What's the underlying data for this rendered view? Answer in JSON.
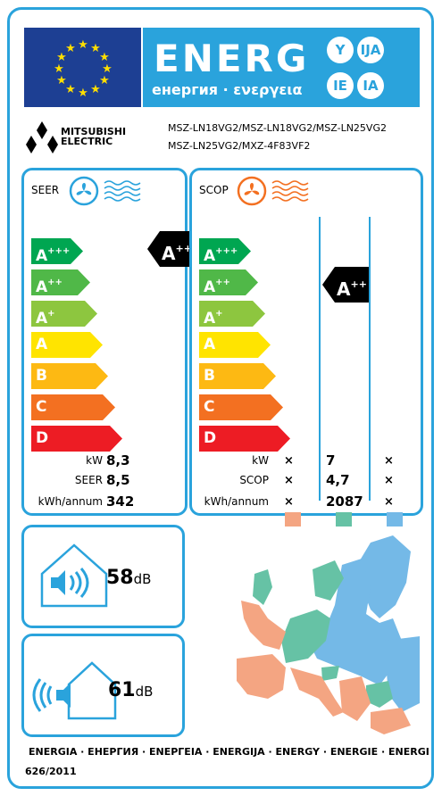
{
  "header": {
    "energ_text": "ENERG",
    "sub_text": "енергия · ενεργεια",
    "suffixes": [
      "Y",
      "IJA",
      "IE",
      "IA"
    ]
  },
  "brand": {
    "name_line1": "MITSUBISHI",
    "name_line2": "ELECTRIC"
  },
  "models": {
    "line1": "MSZ-LN18VG2/MSZ-LN18VG2/MSZ-LN25VG2",
    "line2": "MSZ-LN25VG2/MXZ-4F83VF2"
  },
  "seer": {
    "title": "SEER",
    "classes": [
      "A",
      "A",
      "A",
      "A",
      "B",
      "C",
      "D"
    ],
    "class_sups": [
      "+++",
      "++",
      "+",
      "",
      "",
      "",
      ""
    ],
    "rating": "A",
    "rating_sup": "+++",
    "rows": [
      {
        "label": "kW",
        "value": "8,3"
      },
      {
        "label": "SEER",
        "value": "8,5"
      },
      {
        "label": "kWh/annum",
        "value": "342"
      }
    ]
  },
  "scop": {
    "title": "SCOP",
    "classes": [
      "A",
      "A",
      "A",
      "A",
      "B",
      "C",
      "D"
    ],
    "class_sups": [
      "+++",
      "++",
      "+",
      "",
      "",
      "",
      ""
    ],
    "rating": "A",
    "rating_sup": "++",
    "rows": [
      {
        "label": "kW",
        "col1": "×",
        "col2": "7",
        "col3": "×"
      },
      {
        "label": "SCOP",
        "col1": "×",
        "col2": "4,7",
        "col3": "×"
      },
      {
        "label": "kWh/annum",
        "col1": "×",
        "col2": "2087",
        "col3": "×"
      }
    ],
    "zone_colors": [
      "#f4a582",
      "#66c2a5",
      "#74b9e7"
    ]
  },
  "noise": {
    "indoor_value": "58",
    "outdoor_value": "61",
    "unit": "dB"
  },
  "footer": {
    "languages": "ENERGIA · ЕНЕРГИЯ · ΕΝΕΡΓΕΙΑ · ENERGIJA · ENERGY · ENERGIE · ENERGI",
    "regulation": "626/2011"
  },
  "colors": {
    "frame": "#2aa3dc",
    "eu_blue": "#1d3f93",
    "eu_star": "#ffde00",
    "class_colors": [
      "#00a651",
      "#50b848",
      "#8dc63f",
      "#ffe400",
      "#fdb913",
      "#f37021",
      "#ed1c24"
    ]
  }
}
